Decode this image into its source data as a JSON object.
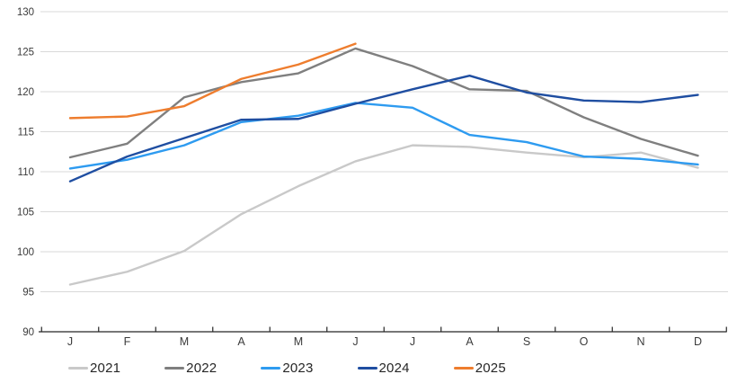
{
  "chart_data": {
    "type": "line",
    "title": "",
    "xlabel": "",
    "ylabel": "",
    "categories": [
      "J",
      "F",
      "M",
      "A",
      "M",
      "J",
      "J",
      "A",
      "S",
      "O",
      "N",
      "D"
    ],
    "y_axis": {
      "min": 90,
      "max": 130,
      "step": 5,
      "tick_labels": [
        "90",
        "95",
        "100",
        "105",
        "110",
        "115",
        "120",
        "125",
        "130"
      ]
    },
    "grid": true,
    "legend_position": "bottom",
    "series": [
      {
        "name": "2021",
        "color": "#c9c9c9",
        "values": [
          95.9,
          97.5,
          100.1,
          104.7,
          108.2,
          111.3,
          113.3,
          113.1,
          112.4,
          111.8,
          112.4,
          110.5
        ]
      },
      {
        "name": "2022",
        "color": "#7f7f7f",
        "values": [
          111.8,
          113.5,
          119.3,
          121.2,
          122.3,
          125.4,
          123.2,
          120.3,
          120.1,
          116.8,
          114.1,
          112.0
        ]
      },
      {
        "name": "2023",
        "color": "#2e9bf0",
        "values": [
          110.4,
          111.5,
          113.3,
          116.2,
          117.0,
          118.6,
          118.0,
          114.6,
          113.7,
          111.9,
          111.6,
          110.9
        ]
      },
      {
        "name": "2024",
        "color": "#1f4ea1",
        "values": [
          108.8,
          111.9,
          114.2,
          116.5,
          116.6,
          118.5,
          120.3,
          122.0,
          119.9,
          118.9,
          118.7,
          119.6
        ]
      },
      {
        "name": "2025",
        "color": "#ee7d2e",
        "values": [
          116.7,
          116.9,
          118.2,
          121.6,
          123.4,
          126.0
        ]
      }
    ]
  },
  "colors": {
    "gridline": "#d9d9d9",
    "axis_line": "#262626",
    "tick_label": "#3b3b3b",
    "background": "#ffffff"
  }
}
